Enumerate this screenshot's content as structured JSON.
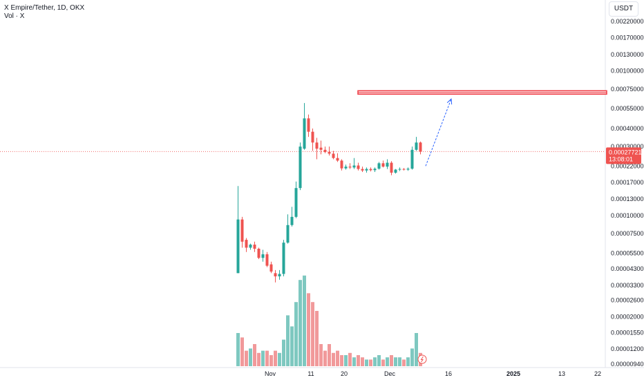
{
  "legend": {
    "symbol_line": "X Empire/Tether, 1D, OKX",
    "volume_line": "Vol · X"
  },
  "currency_label": "USDT",
  "current_price": {
    "value": "0.00027721",
    "countdown": "13:08:01",
    "color": "#ef5350"
  },
  "colors": {
    "up": "#26a69a",
    "down": "#ef5350",
    "vol_up": "#7ec8c0",
    "vol_down": "#f1999a",
    "annotation_line": "#ef3a43",
    "arrow": "#2962ff"
  },
  "chart_data": {
    "type": "candlestick",
    "y_scale": "log",
    "y_ticks": [
      "0.00220000",
      "0.00170000",
      "0.00130000",
      "0.00100000",
      "0.00075000",
      "0.00055000",
      "0.00040000",
      "0.00030000",
      "0.00022000",
      "0.00017000",
      "0.00013000",
      "0.00010000",
      "0.00007500",
      "0.00005500",
      "0.00004300",
      "0.00003300",
      "0.00002600",
      "0.00002000",
      "0.00001550",
      "0.00001200",
      "0.00000940"
    ],
    "x_ticks": [
      {
        "label": "Nov",
        "bold": false
      },
      {
        "label": "11",
        "bold": false
      },
      {
        "label": "20",
        "bold": false
      },
      {
        "label": "Dec",
        "bold": false
      },
      {
        "label": "16",
        "bold": false
      },
      {
        "label": "2025",
        "bold": true
      },
      {
        "label": "13",
        "bold": false
      },
      {
        "label": "22",
        "bold": false
      }
    ],
    "annotations": {
      "resistance_level": 0.00071,
      "arrow_from": 0.00022,
      "arrow_to": 0.00064
    },
    "candles": [
      {
        "o": 4e-05,
        "h": 0.00016,
        "l": 4e-05,
        "c": 9.4e-05,
        "v": 15
      },
      {
        "o": 9.4e-05,
        "h": 9.8e-05,
        "l": 6e-05,
        "c": 6.6e-05,
        "v": 13
      },
      {
        "o": 6.8e-05,
        "h": 7e-05,
        "l": 5.6e-05,
        "c": 6e-05,
        "v": 7
      },
      {
        "o": 6e-05,
        "h": 6.4e-05,
        "l": 5.8e-05,
        "c": 6.3e-05,
        "v": 8
      },
      {
        "o": 6.3e-05,
        "h": 6.6e-05,
        "l": 5.6e-05,
        "c": 5.9e-05,
        "v": 10
      },
      {
        "o": 5.9e-05,
        "h": 6e-05,
        "l": 5e-05,
        "c": 5.1e-05,
        "v": 6
      },
      {
        "o": 5.1e-05,
        "h": 5.8e-05,
        "l": 4.8e-05,
        "c": 5.4e-05,
        "v": 7
      },
      {
        "o": 5.4e-05,
        "h": 5.6e-05,
        "l": 4.4e-05,
        "c": 4.5e-05,
        "v": 7
      },
      {
        "o": 4.6e-05,
        "h": 4.8e-05,
        "l": 4e-05,
        "c": 4.1e-05,
        "v": 5
      },
      {
        "o": 4e-05,
        "h": 4.2e-05,
        "l": 3.45e-05,
        "c": 3.8e-05,
        "v": 7
      },
      {
        "o": 3.8e-05,
        "h": 4.2e-05,
        "l": 3.6e-05,
        "c": 3.95e-05,
        "v": 6
      },
      {
        "o": 3.95e-05,
        "h": 6.8e-05,
        "l": 3.8e-05,
        "c": 6.5e-05,
        "v": 12
      },
      {
        "o": 6.5e-05,
        "h": 0.000102,
        "l": 6.4e-05,
        "c": 8.6e-05,
        "v": 23
      },
      {
        "o": 8.6e-05,
        "h": 0.000115,
        "l": 8.4e-05,
        "c": 9.8e-05,
        "v": 18
      },
      {
        "o": 9.8e-05,
        "h": 0.000172,
        "l": 9.6e-05,
        "c": 0.000155,
        "v": 29
      },
      {
        "o": 0.000155,
        "h": 0.00032,
        "l": 0.00015,
        "c": 0.0003,
        "v": 39
      },
      {
        "o": 0.00029,
        "h": 0.0006,
        "l": 0.000285,
        "c": 0.00047,
        "v": 41
      },
      {
        "o": 0.00047,
        "h": 0.0005,
        "l": 0.00035,
        "c": 0.00038,
        "v": 33
      },
      {
        "o": 0.00038,
        "h": 0.0004,
        "l": 0.00028,
        "c": 0.00032,
        "v": 29
      },
      {
        "o": 0.00032,
        "h": 0.000345,
        "l": 0.000245,
        "c": 0.00029,
        "v": 25
      },
      {
        "o": 0.000295,
        "h": 0.00033,
        "l": 0.000265,
        "c": 0.000285,
        "v": 10
      },
      {
        "o": 0.000285,
        "h": 0.0003,
        "l": 0.00027,
        "c": 0.000275,
        "v": 7
      },
      {
        "o": 0.000275,
        "h": 0.0003,
        "l": 0.00026,
        "c": 0.000268,
        "v": 10
      },
      {
        "o": 0.000268,
        "h": 0.00028,
        "l": 0.000245,
        "c": 0.00025,
        "v": 6
      },
      {
        "o": 0.00025,
        "h": 0.00027,
        "l": 0.000235,
        "c": 0.00024,
        "v": 7
      },
      {
        "o": 0.00024,
        "h": 0.000245,
        "l": 0.000205,
        "c": 0.000212,
        "v": 5
      },
      {
        "o": 0.000212,
        "h": 0.000225,
        "l": 0.000208,
        "c": 0.000218,
        "v": 5
      },
      {
        "o": 0.000218,
        "h": 0.00023,
        "l": 0.00021,
        "c": 0.000215,
        "v": 6
      },
      {
        "o": 0.000215,
        "h": 0.00025,
        "l": 0.00021,
        "c": 0.000222,
        "v": 4
      },
      {
        "o": 0.000222,
        "h": 0.000232,
        "l": 0.000205,
        "c": 0.00021,
        "v": 5
      },
      {
        "o": 0.00021,
        "h": 0.000218,
        "l": 0.0002,
        "c": 0.000205,
        "v": 4
      },
      {
        "o": 0.000205,
        "h": 0.000215,
        "l": 0.000198,
        "c": 0.00021,
        "v": 3
      },
      {
        "o": 0.00021,
        "h": 0.000215,
        "l": 0.000202,
        "c": 0.000206,
        "v": 3
      },
      {
        "o": 0.000206,
        "h": 0.000215,
        "l": 0.0002,
        "c": 0.000211,
        "v": 4
      },
      {
        "o": 0.000211,
        "h": 0.000235,
        "l": 0.000208,
        "c": 0.00023,
        "v": 5
      },
      {
        "o": 0.00023,
        "h": 0.00024,
        "l": 0.000215,
        "c": 0.000218,
        "v": 3
      },
      {
        "o": 0.000218,
        "h": 0.000245,
        "l": 0.00021,
        "c": 0.000232,
        "v": 4
      },
      {
        "o": 0.000232,
        "h": 0.000238,
        "l": 0.00019,
        "c": 0.000198,
        "v": 5
      },
      {
        "o": 0.000198,
        "h": 0.00021,
        "l": 0.000195,
        "c": 0.000208,
        "v": 4
      },
      {
        "o": 0.000208,
        "h": 0.000215,
        "l": 0.000203,
        "c": 0.00021,
        "v": 4
      },
      {
        "o": 0.00021,
        "h": 0.000213,
        "l": 0.000205,
        "c": 0.000208,
        "v": 3
      },
      {
        "o": 0.000208,
        "h": 0.000215,
        "l": 0.000204,
        "c": 0.000211,
        "v": 4
      },
      {
        "o": 0.000211,
        "h": 0.0003,
        "l": 0.000208,
        "c": 0.000285,
        "v": 8
      },
      {
        "o": 0.000285,
        "h": 0.00035,
        "l": 0.00028,
        "c": 0.00032,
        "v": 15
      },
      {
        "o": 0.00032,
        "h": 0.000325,
        "l": 0.000265,
        "c": 0.000277,
        "v": 6
      }
    ]
  }
}
